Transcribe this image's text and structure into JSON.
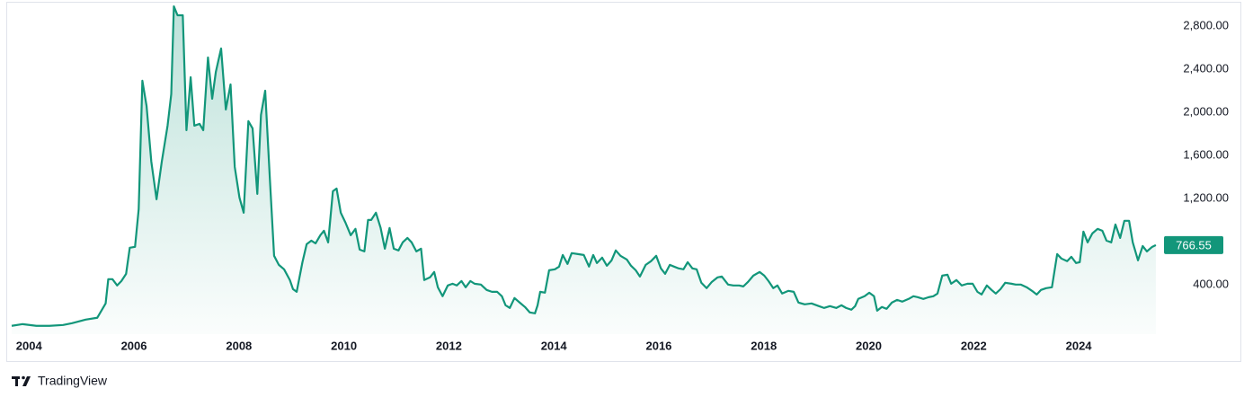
{
  "chart_data": {
    "type": "area",
    "color": "#12967a",
    "grid": false,
    "xlim": [
      2003.67,
      2025.54
    ],
    "xticks": [
      2004,
      2006,
      2008,
      2010,
      2012,
      2014,
      2016,
      2018,
      2020,
      2022,
      2024
    ],
    "ylim": [
      -60,
      3000
    ],
    "yticks": [
      {
        "value": 400,
        "label": "400.00"
      },
      {
        "value": 1200,
        "label": "1,200.00"
      },
      {
        "value": 1600,
        "label": "1,600.00"
      },
      {
        "value": 2000,
        "label": "2,000.00"
      },
      {
        "value": 2400,
        "label": "2,400.00"
      },
      {
        "value": 2800,
        "label": "2,800.00"
      }
    ],
    "x": [
      2003.67,
      2003.88,
      2004.14,
      2004.39,
      2004.65,
      2004.82,
      2005.08,
      2005.3,
      2005.46,
      2005.51,
      2005.59,
      2005.68,
      2005.76,
      2005.85,
      2005.92,
      2006.02,
      2006.09,
      2006.16,
      2006.24,
      2006.33,
      2006.43,
      2006.53,
      2006.64,
      2006.71,
      2006.76,
      2006.83,
      2006.93,
      2007.0,
      2007.08,
      2007.15,
      2007.25,
      2007.32,
      2007.41,
      2007.49,
      2007.56,
      2007.66,
      2007.75,
      2007.84,
      2007.92,
      2008.01,
      2008.09,
      2008.18,
      2008.26,
      2008.35,
      2008.42,
      2008.5,
      2008.59,
      2008.67,
      2008.76,
      2008.86,
      2008.97,
      2009.03,
      2009.1,
      2009.21,
      2009.29,
      2009.38,
      2009.46,
      2009.55,
      2009.62,
      2009.7,
      2009.79,
      2009.86,
      2009.94,
      2010.03,
      2010.13,
      2010.22,
      2010.3,
      2010.39,
      2010.46,
      2010.52,
      2010.61,
      2010.7,
      2010.78,
      2010.87,
      2010.95,
      2011.04,
      2011.12,
      2011.21,
      2011.29,
      2011.38,
      2011.47,
      2011.53,
      2011.64,
      2011.72,
      2011.79,
      2011.88,
      2011.98,
      2012.07,
      2012.15,
      2012.24,
      2012.32,
      2012.41,
      2012.49,
      2012.61,
      2012.72,
      2012.82,
      2012.92,
      2013.01,
      2013.08,
      2013.16,
      2013.25,
      2013.35,
      2013.45,
      2013.54,
      2013.64,
      2013.69,
      2013.74,
      2013.83,
      2013.91,
      2014.02,
      2014.1,
      2014.17,
      2014.26,
      2014.34,
      2014.46,
      2014.57,
      2014.67,
      2014.75,
      2014.82,
      2014.92,
      2015.01,
      2015.1,
      2015.18,
      2015.27,
      2015.39,
      2015.47,
      2015.56,
      2015.64,
      2015.75,
      2015.85,
      2015.95,
      2016.04,
      2016.12,
      2016.21,
      2016.29,
      2016.38,
      2016.47,
      2016.55,
      2016.64,
      2016.72,
      2016.81,
      2016.91,
      2017.01,
      2017.12,
      2017.2,
      2017.32,
      2017.42,
      2017.53,
      2017.61,
      2017.7,
      2017.8,
      2017.92,
      2018.01,
      2018.09,
      2018.18,
      2018.26,
      2018.35,
      2018.47,
      2018.57,
      2018.66,
      2018.78,
      2018.91,
      2019.05,
      2019.15,
      2019.26,
      2019.38,
      2019.48,
      2019.57,
      2019.67,
      2019.74,
      2019.8,
      2019.92,
      2020.01,
      2020.1,
      2020.16,
      2020.25,
      2020.34,
      2020.44,
      2020.54,
      2020.64,
      2020.76,
      2020.85,
      2020.93,
      2021.04,
      2021.14,
      2021.23,
      2021.31,
      2021.4,
      2021.5,
      2021.57,
      2021.67,
      2021.77,
      2021.88,
      2021.98,
      2022.07,
      2022.15,
      2022.25,
      2022.34,
      2022.42,
      2022.51,
      2022.6,
      2022.72,
      2022.8,
      2022.9,
      2023.01,
      2023.11,
      2023.2,
      2023.28,
      2023.38,
      2023.49,
      2023.59,
      2023.67,
      2023.78,
      2023.86,
      2023.95,
      2024.02,
      2024.09,
      2024.17,
      2024.26,
      2024.36,
      2024.45,
      2024.53,
      2024.62,
      2024.7,
      2024.79,
      2024.87,
      2024.96,
      2025.03,
      2025.13,
      2025.22,
      2025.3,
      2025.4,
      2025.47
    ],
    "values": [
      17,
      33,
      17,
      17,
      25,
      42,
      75,
      92,
      225,
      450,
      450,
      392,
      433,
      500,
      742,
      750,
      1100,
      2292,
      2058,
      1542,
      1192,
      1542,
      1875,
      2167,
      2983,
      2900,
      2900,
      1833,
      2325,
      1875,
      1892,
      1833,
      2508,
      2125,
      2375,
      2592,
      2025,
      2258,
      1492,
      1208,
      1067,
      1917,
      1850,
      1242,
      1975,
      2200,
      1375,
      667,
      583,
      542,
      442,
      358,
      333,
      608,
      775,
      808,
      783,
      858,
      900,
      792,
      1267,
      1292,
      1067,
      975,
      858,
      917,
      725,
      708,
      1000,
      1000,
      1067,
      925,
      733,
      925,
      733,
      717,
      792,
      833,
      792,
      708,
      733,
      442,
      467,
      517,
      375,
      292,
      392,
      408,
      392,
      433,
      375,
      433,
      408,
      400,
      350,
      333,
      333,
      292,
      208,
      183,
      275,
      233,
      192,
      142,
      133,
      208,
      333,
      325,
      533,
      542,
      567,
      675,
      592,
      692,
      683,
      675,
      567,
      675,
      600,
      650,
      575,
      625,
      717,
      667,
      633,
      575,
      533,
      475,
      583,
      617,
      667,
      550,
      500,
      583,
      567,
      550,
      542,
      608,
      550,
      542,
      417,
      367,
      425,
      467,
      475,
      400,
      392,
      392,
      383,
      425,
      483,
      517,
      483,
      433,
      367,
      392,
      317,
      342,
      333,
      233,
      217,
      225,
      200,
      183,
      200,
      183,
      208,
      183,
      167,
      200,
      267,
      292,
      325,
      292,
      158,
      192,
      175,
      233,
      258,
      242,
      267,
      292,
      283,
      267,
      283,
      292,
      317,
      483,
      492,
      408,
      442,
      392,
      408,
      408,
      333,
      308,
      392,
      350,
      317,
      358,
      417,
      408,
      400,
      400,
      375,
      342,
      308,
      350,
      367,
      375,
      683,
      642,
      617,
      658,
      600,
      608,
      892,
      792,
      875,
      917,
      900,
      808,
      792,
      958,
      833,
      992,
      992,
      792,
      625,
      758,
      708,
      750,
      766.55
    ]
  },
  "branding": "TradingView"
}
